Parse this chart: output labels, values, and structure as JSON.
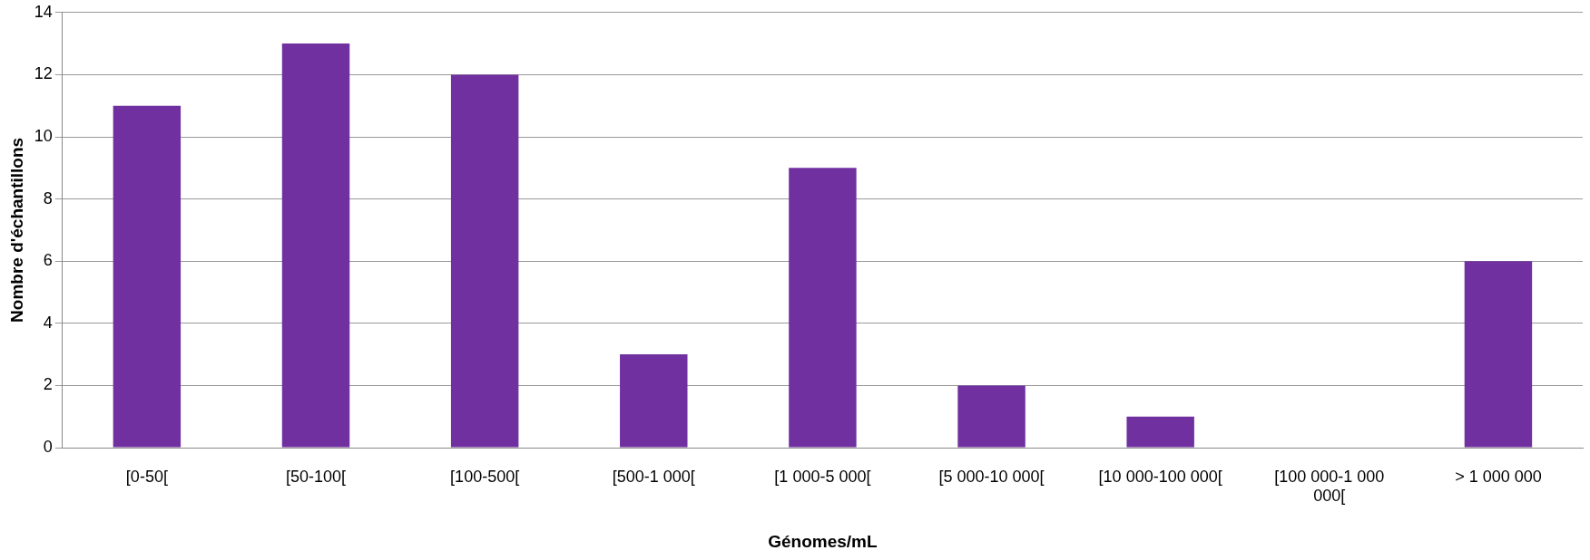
{
  "chart_data": {
    "type": "bar",
    "xlabel": "Génomes/mL",
    "ylabel": "Nombre d'échantillons",
    "categories": [
      "[0-50[",
      "[50-100[",
      "[100-500[",
      "[500-1 000[",
      "[1 000-5 000[",
      "[5 000-10 000[",
      "[10 000-100 000[",
      "[100 000-1 000 000[",
      "> 1 000 000"
    ],
    "values": [
      11,
      13,
      12,
      3,
      9,
      2,
      1,
      0,
      6
    ],
    "color": "#7030a0",
    "ylim": [
      0,
      14
    ],
    "yticks": [
      0,
      2,
      4,
      6,
      8,
      10,
      12,
      14
    ],
    "grid": "y",
    "legend": false
  }
}
